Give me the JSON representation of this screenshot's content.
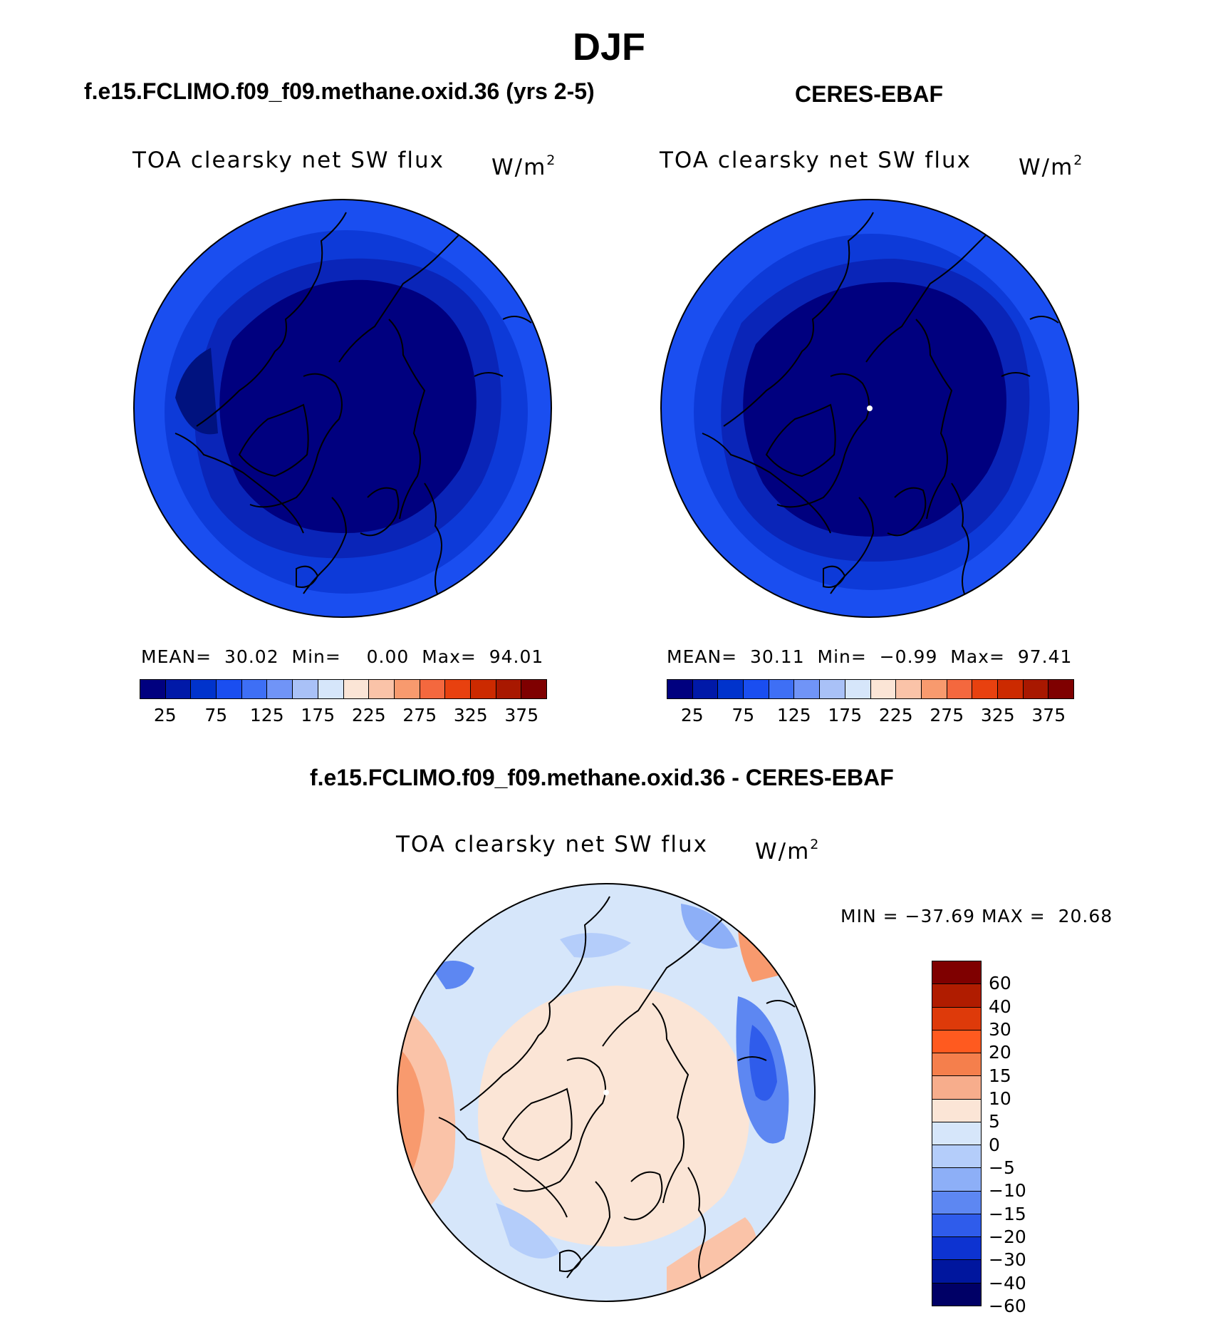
{
  "figure": {
    "season": "DJF"
  },
  "panels": [
    {
      "title": "f.e15.FCLIMO.f09_f09.methane.oxid.36 (yrs 2-5)",
      "variable": "TOA clearsky net SW flux",
      "units_base": "W/m",
      "units_exp": "2",
      "stats": {
        "mean_label": "MEAN=",
        "mean": "30.02",
        "min_label": "Min=",
        "min": "0.00",
        "max_label": "Max=",
        "max": "94.01"
      }
    },
    {
      "title": "CERES-EBAF",
      "variable": "TOA clearsky net SW flux",
      "units_base": "W/m",
      "units_exp": "2",
      "stats": {
        "mean_label": "MEAN=",
        "mean": "30.11",
        "min_label": "Min=",
        "min": "−0.99",
        "max_label": "Max=",
        "max": "97.41"
      }
    },
    {
      "title": "f.e15.FCLIMO.f09_f09.methane.oxid.36 - CERES-EBAF",
      "variable": "TOA clearsky net SW flux",
      "units_base": "W/m",
      "units_exp": "2",
      "stats": {
        "min_label": "MIN =",
        "min": "−37.69",
        "max_label": "MAX =",
        "max": "20.68"
      }
    }
  ],
  "colorbar_abs": {
    "colors": [
      "#00007f",
      "#0019a8",
      "#0033cc",
      "#1a4ef0",
      "#3e6ff5",
      "#7094f7",
      "#a9c1f7",
      "#d6e6fa",
      "#fbe5d6",
      "#fac3a8",
      "#f89a6e",
      "#f4683e",
      "#e8410f",
      "#cc2a00",
      "#a81800",
      "#7f0000"
    ],
    "tick_labels": [
      "25",
      "75",
      "125",
      "175",
      "225",
      "275",
      "325",
      "375"
    ]
  },
  "colorbar_diff": {
    "colors": [
      "#7f0000",
      "#b01c00",
      "#de3a0a",
      "#ff5a1f",
      "#f57f4c",
      "#f7ad8c",
      "#fbe5d6",
      "#d6e6fa",
      "#b4cdfa",
      "#8daff7",
      "#5d87f2",
      "#2f5ceb",
      "#0d33d1",
      "#00169e",
      "#000066"
    ],
    "tick_labels": [
      "60",
      "40",
      "30",
      "20",
      "15",
      "10",
      "5",
      "0",
      "−5",
      "−10",
      "−15",
      "−20",
      "−30",
      "−40",
      "−60"
    ]
  },
  "chart_data": [
    {
      "type": "heatmap",
      "title": "f.e15.FCLIMO.f09_f09.methane.oxid.36 (yrs 2-5)",
      "variable": "TOA clearsky net SW flux",
      "units": "W/m2",
      "projection": "north polar stereographic",
      "levels": [
        25,
        50,
        75,
        100,
        125,
        150,
        175,
        200,
        225,
        250,
        275,
        300,
        325,
        350,
        375
      ],
      "mean": 30.02,
      "min": 0.0,
      "max": 94.01
    },
    {
      "type": "heatmap",
      "title": "CERES-EBAF",
      "variable": "TOA clearsky net SW flux",
      "units": "W/m2",
      "projection": "north polar stereographic",
      "levels": [
        25,
        50,
        75,
        100,
        125,
        150,
        175,
        200,
        225,
        250,
        275,
        300,
        325,
        350,
        375
      ],
      "mean": 30.11,
      "min": -0.99,
      "max": 97.41
    },
    {
      "type": "heatmap",
      "title": "f.e15.FCLIMO.f09_f09.methane.oxid.36 - CERES-EBAF",
      "variable": "TOA clearsky net SW flux",
      "units": "W/m2",
      "projection": "north polar stereographic",
      "levels": [
        -60,
        -40,
        -30,
        -20,
        -15,
        -10,
        -5,
        0,
        5,
        10,
        15,
        20,
        30,
        40,
        60
      ],
      "min": -37.69,
      "max": 20.68
    }
  ]
}
